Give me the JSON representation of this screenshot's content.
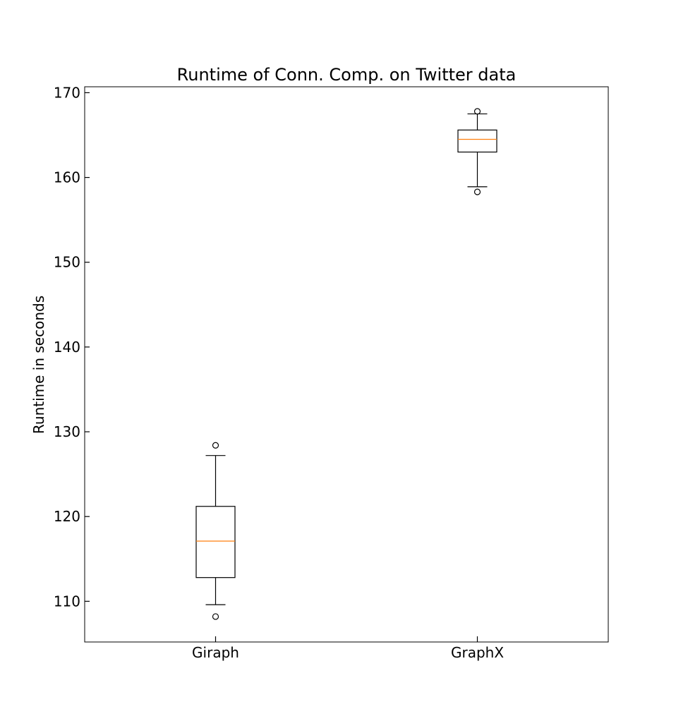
{
  "chart_data": {
    "type": "boxplot",
    "title": "Runtime of Conn. Comp. on Twitter data",
    "xlabel": "",
    "ylabel": "Runtime in seconds",
    "ylim": [
      105.2,
      170.7
    ],
    "yticks": [
      110,
      120,
      130,
      140,
      150,
      160,
      170
    ],
    "categories": [
      "Giraph",
      "GraphX"
    ],
    "grid": false,
    "boxes": [
      {
        "name": "Giraph",
        "whislo": 109.6,
        "q1": 112.8,
        "med": 117.1,
        "q3": 121.2,
        "whishi": 127.2,
        "fliers": [
          108.2,
          128.4
        ]
      },
      {
        "name": "GraphX",
        "whislo": 158.9,
        "q1": 163.0,
        "med": 164.5,
        "q3": 165.6,
        "whishi": 167.5,
        "fliers": [
          158.3,
          167.8
        ]
      }
    ],
    "colors": {
      "box": "#000000",
      "median": "#ff7f0e",
      "flier": "#000000"
    }
  }
}
